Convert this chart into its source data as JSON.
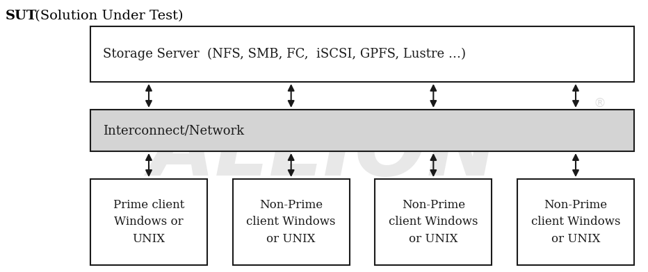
{
  "title_bold": "SUT",
  "title_normal": " (Solution Under Test)",
  "storage_server_label": "Storage Server  (NFS, SMB, FC,  iSCSI, GPFS, Lustre …)",
  "network_label": "Interconnect/Network",
  "client_labels": [
    "Prime client\nWindows or\nUNIX",
    "Non-Prime\nclient Windows\nor UNIX",
    "Non-Prime\nclient Windows\nor UNIX",
    "Non-Prime\nclient Windows\nor UNIX"
  ],
  "bg_color": "#ffffff",
  "box_edge_color": "#1a1a1a",
  "box_fill_color": "#ffffff",
  "network_fill_color": "#d4d4d4",
  "text_color": "#1a1a1a",
  "arrow_color": "#1a1a1a",
  "watermark_color": "#cccccc",
  "font_family": "serif",
  "font_size_title": 14,
  "font_size_server": 13,
  "font_size_network": 13,
  "font_size_clients": 12,
  "fig_width": 9.32,
  "fig_height": 3.92,
  "dpi": 100
}
